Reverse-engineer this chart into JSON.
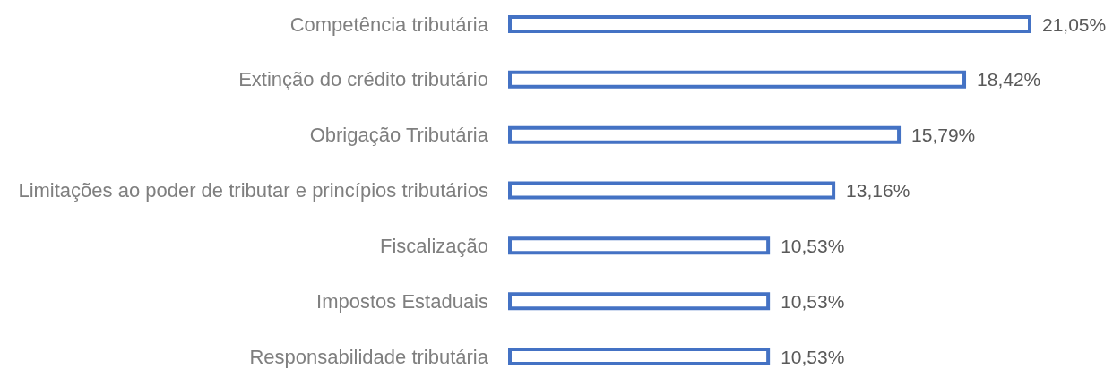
{
  "chart_data": {
    "type": "bar",
    "orientation": "horizontal",
    "categories": [
      "Competência tributária",
      "Extinção do crédito tributário",
      "Obrigação Tributária",
      "Limitações ao poder de tributar e princípios tributários",
      "Fiscalização",
      "Impostos Estaduais",
      "Responsabilidade tributária"
    ],
    "values": [
      21.05,
      18.42,
      15.79,
      13.16,
      10.53,
      10.53,
      10.53
    ],
    "value_labels": [
      "21,05%",
      "18,42%",
      "15,79%",
      "13,16%",
      "10,53%",
      "10,53%",
      "10,53%"
    ],
    "color": "#4472c4",
    "grid": false,
    "tick_labels": "y"
  }
}
